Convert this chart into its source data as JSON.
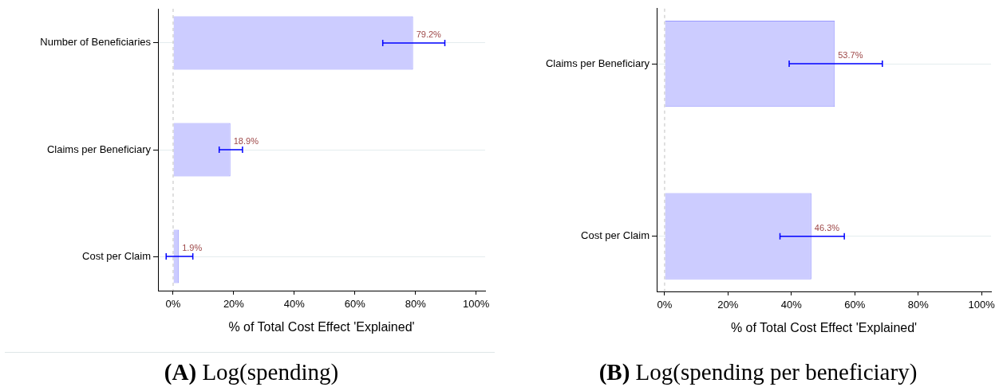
{
  "chart_data": [
    {
      "type": "bar",
      "orientation": "horizontal",
      "title": "(A) Log(spending)",
      "xlabel": "% of Total Cost Effect 'Explained'",
      "categories": [
        "Number of Beneficiaries",
        "Claims per Beneficiary",
        "Cost per Claim"
      ],
      "values": [
        79.2,
        18.9,
        1.9
      ],
      "errors": [
        [
          69.2,
          89.7
        ],
        [
          15.2,
          22.9
        ],
        [
          -2.3,
          6.5
        ]
      ],
      "value_labels": [
        "79.2%",
        "18.9%",
        "1.9%"
      ],
      "color": "#ccccff",
      "xlim": [
        -5,
        103
      ],
      "xticks": [
        {
          "value": 0,
          "label": "0%"
        },
        {
          "value": 20,
          "label": "20%"
        },
        {
          "value": 40,
          "label": "40%"
        },
        {
          "value": 60,
          "label": "60%"
        },
        {
          "value": 80,
          "label": "80%"
        },
        {
          "value": 100,
          "label": "100%"
        }
      ],
      "grid": "y",
      "ref_lines": [
        {
          "axis": "x",
          "value": 0,
          "color": "#c0c0c0",
          "line_style": "dashed"
        }
      ]
    },
    {
      "type": "bar",
      "orientation": "horizontal",
      "title": "(B) Log(spending per beneficiary)",
      "xlabel": "% of Total Cost Effect 'Explained'",
      "categories": [
        "Claims per Beneficiary",
        "Cost per Claim"
      ],
      "values": [
        53.7,
        46.3
      ],
      "errors": [
        [
          39.3,
          68.7
        ],
        [
          36.4,
          56.7
        ]
      ],
      "value_labels": [
        "53.7%",
        "46.3%"
      ],
      "color": "#ccccff",
      "xlim": [
        -2.5,
        103
      ],
      "xticks": [
        {
          "value": 0,
          "label": "0%"
        },
        {
          "value": 20,
          "label": "20%"
        },
        {
          "value": 40,
          "label": "40%"
        },
        {
          "value": 60,
          "label": "60%"
        },
        {
          "value": 80,
          "label": "80%"
        },
        {
          "value": 100,
          "label": "100%"
        }
      ],
      "grid": "y",
      "ref_lines": [
        {
          "axis": "x",
          "value": 0,
          "color": "#c0c0c0",
          "line_style": "dashed"
        }
      ]
    }
  ]
}
